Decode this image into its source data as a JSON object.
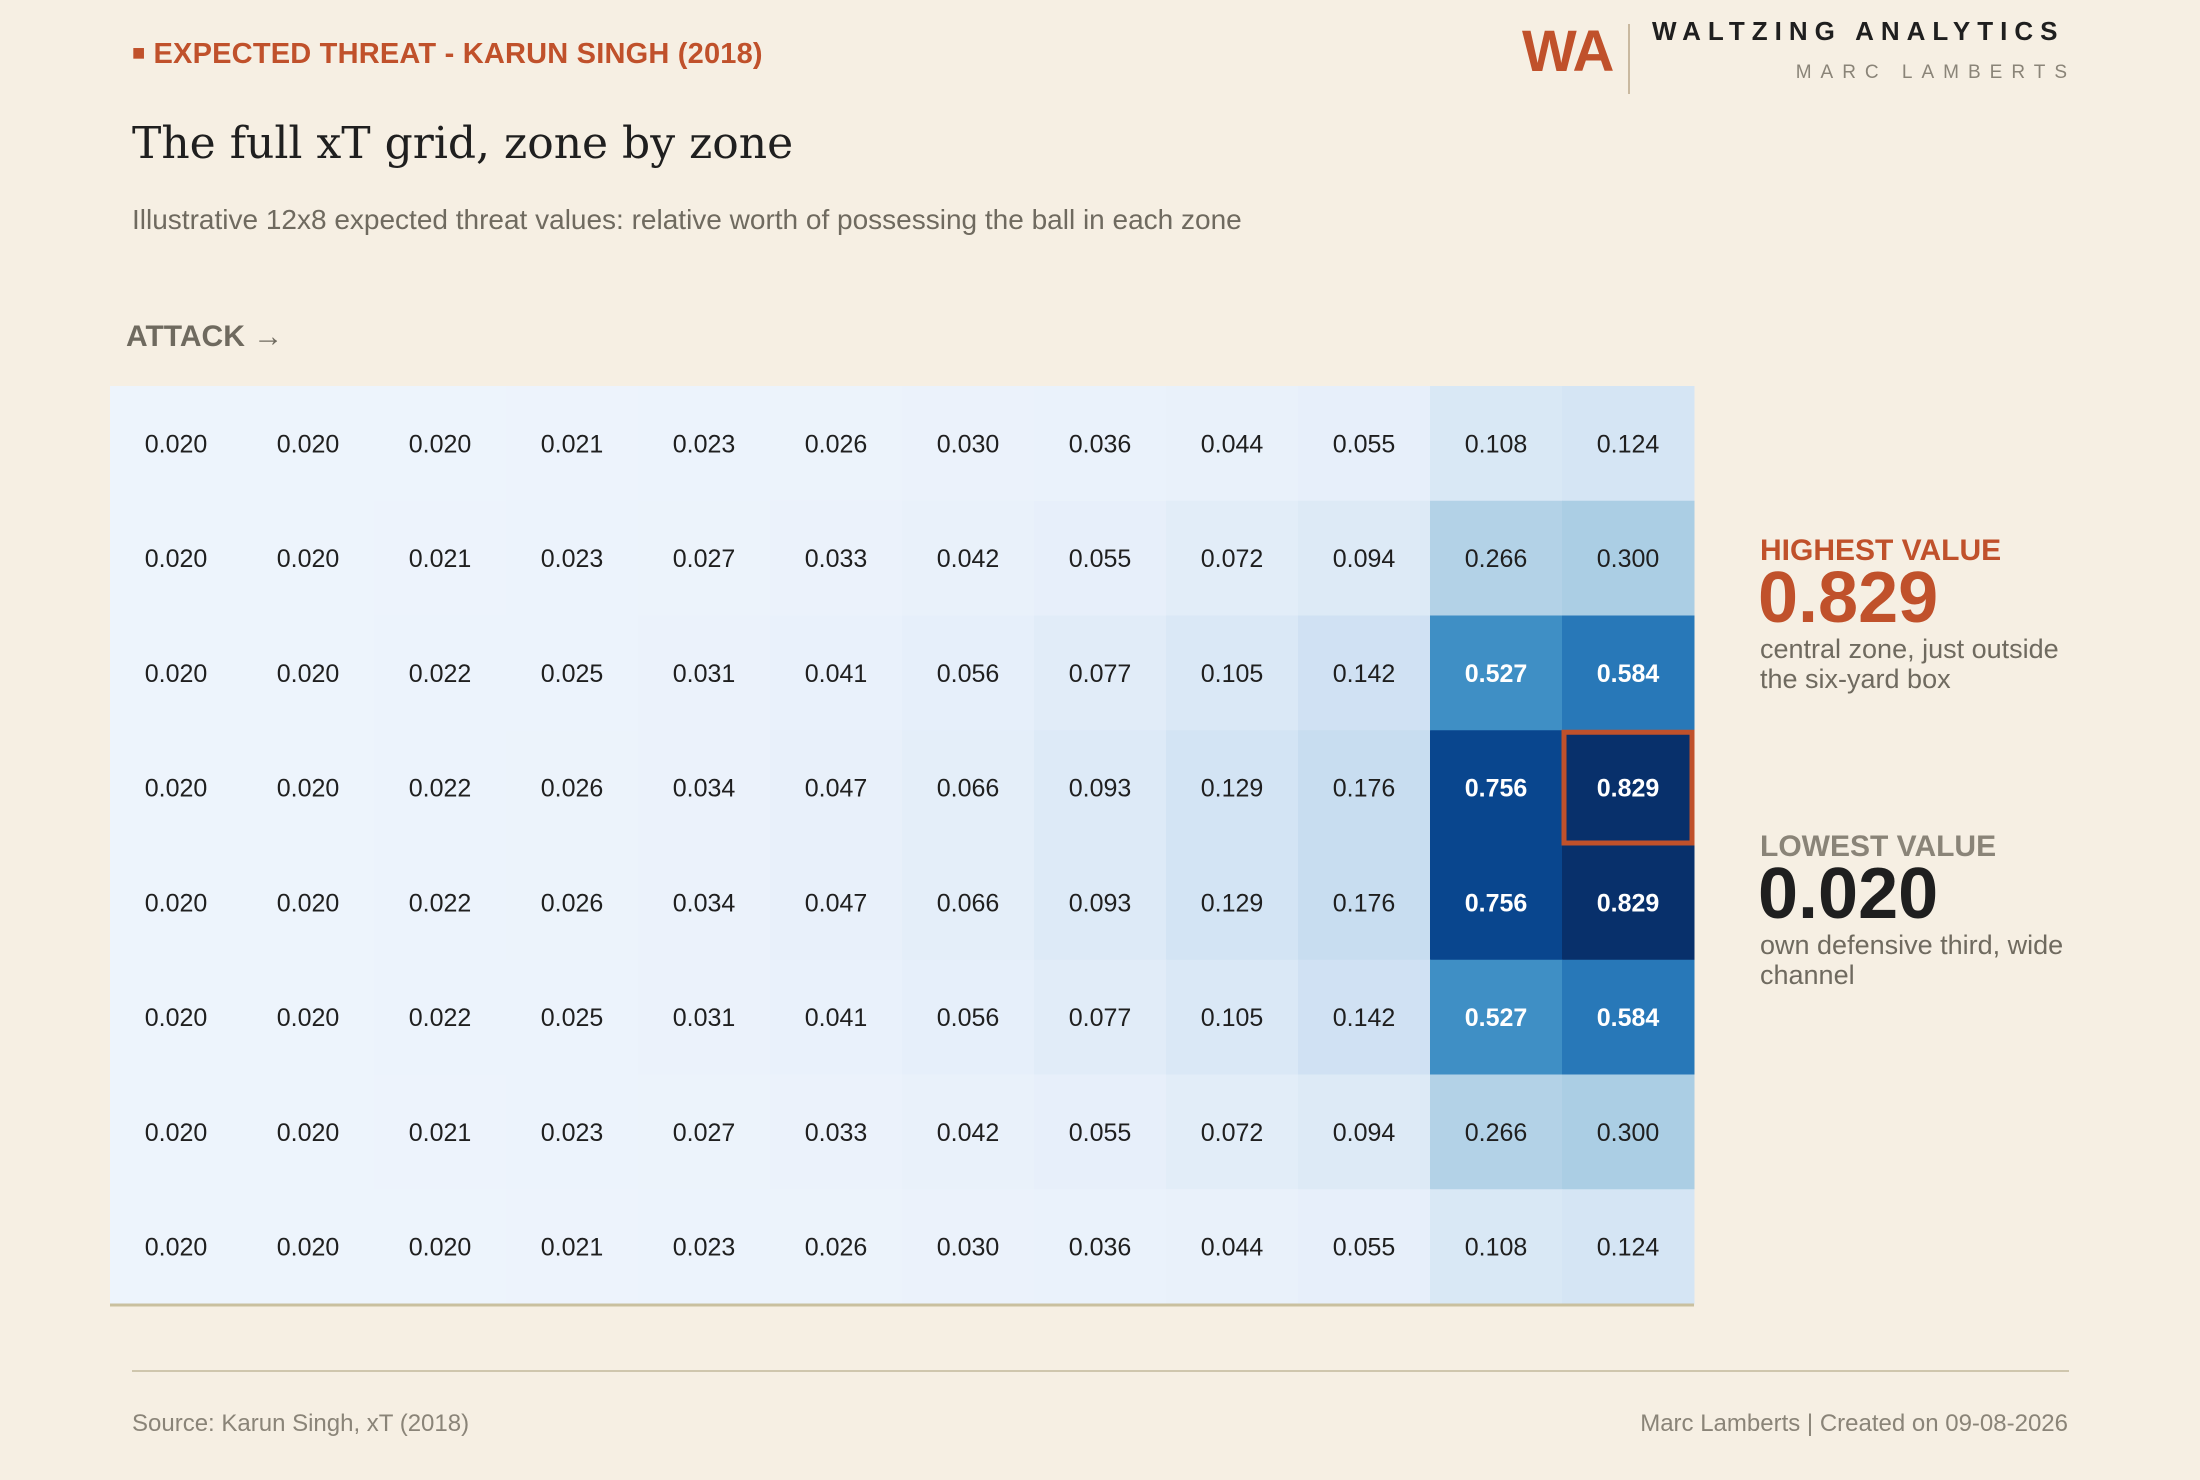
{
  "header": {
    "kicker": "EXPECTED THREAT - KARUN SINGH (2018)",
    "title": "The full xT grid, zone by zone",
    "subtitle": "Illustrative 12x8 expected threat values: relative worth of possessing the ball in each zone"
  },
  "logo": {
    "mark": "WA",
    "name": "WALTZING ANALYTICS",
    "sub": "MARC LAMBERTS"
  },
  "direction_label": "ATTACK →",
  "callouts": {
    "highest": {
      "label": "HIGHEST VALUE",
      "value": "0.829",
      "desc": "central zone, just outside the six-yard box"
    },
    "lowest": {
      "label": "LOWEST VALUE",
      "value": "0.020",
      "desc": "own defensive third, wide channel"
    }
  },
  "footer": {
    "source": "Source: Karun Singh, xT (2018)",
    "credit": "Marc Lamberts | Created on 09-08-2026"
  },
  "colors": {
    "accent": "#c0512b",
    "background": "#f6efe3",
    "scale_low": "#f0f6fd",
    "scale_high": "#08306b",
    "highlight_border": "#c0512b"
  },
  "chart_data": {
    "type": "heatmap",
    "columns": 12,
    "rows": 8,
    "highlight": {
      "row": 3,
      "col": 11
    },
    "values": [
      [
        "0.020",
        "0.020",
        "0.020",
        "0.021",
        "0.023",
        "0.026",
        "0.030",
        "0.036",
        "0.044",
        "0.055",
        "0.108",
        "0.124"
      ],
      [
        "0.020",
        "0.020",
        "0.021",
        "0.023",
        "0.027",
        "0.033",
        "0.042",
        "0.055",
        "0.072",
        "0.094",
        "0.266",
        "0.300"
      ],
      [
        "0.020",
        "0.020",
        "0.022",
        "0.025",
        "0.031",
        "0.041",
        "0.056",
        "0.077",
        "0.105",
        "0.142",
        "0.527",
        "0.584"
      ],
      [
        "0.020",
        "0.020",
        "0.022",
        "0.026",
        "0.034",
        "0.047",
        "0.066",
        "0.093",
        "0.129",
        "0.176",
        "0.756",
        "0.829"
      ],
      [
        "0.020",
        "0.020",
        "0.022",
        "0.026",
        "0.034",
        "0.047",
        "0.066",
        "0.093",
        "0.129",
        "0.176",
        "0.756",
        "0.829"
      ],
      [
        "0.020",
        "0.020",
        "0.022",
        "0.025",
        "0.031",
        "0.041",
        "0.056",
        "0.077",
        "0.105",
        "0.142",
        "0.527",
        "0.584"
      ],
      [
        "0.020",
        "0.020",
        "0.021",
        "0.023",
        "0.027",
        "0.033",
        "0.042",
        "0.055",
        "0.072",
        "0.094",
        "0.266",
        "0.300"
      ],
      [
        "0.020",
        "0.020",
        "0.020",
        "0.021",
        "0.023",
        "0.026",
        "0.030",
        "0.036",
        "0.044",
        "0.055",
        "0.108",
        "0.124"
      ]
    ]
  }
}
